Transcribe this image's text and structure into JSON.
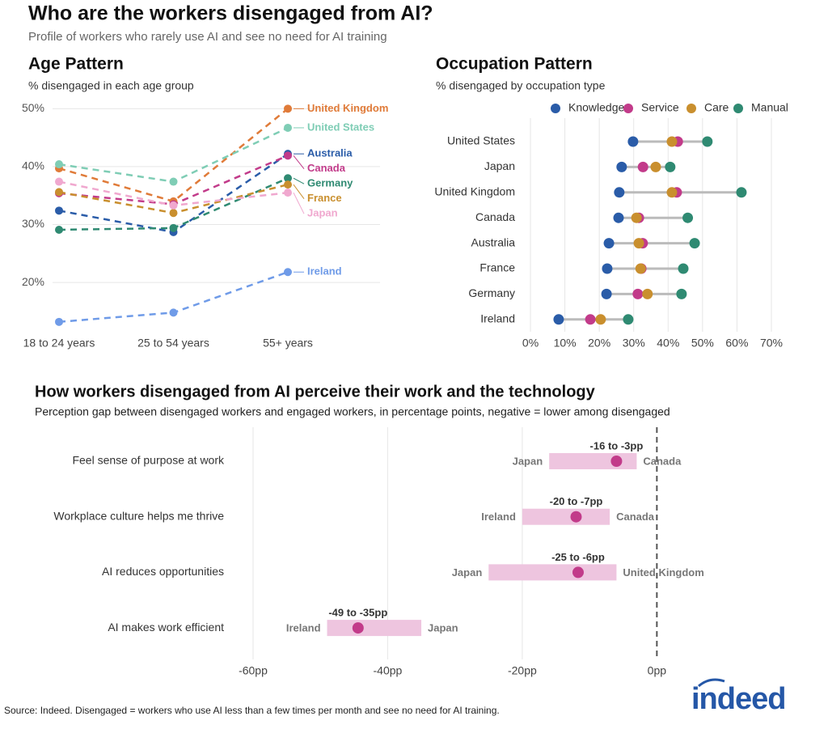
{
  "title": "Who are the workers disengaged from AI?",
  "subtitle": "Profile of workers who rarely use AI and see no need for AI training",
  "source": "Source: Indeed. Disengaged = workers who use AI less than a few times per month and see no need for AI training.",
  "logo": "indeed",
  "chart_data": [
    {
      "type": "line",
      "title": "Age Pattern",
      "subtitle": "% disengaged in each age group",
      "categories": [
        "18 to 24 years",
        "25 to 54 years",
        "55+ years"
      ],
      "ylim": [
        11.5,
        52
      ],
      "yticks": [
        {
          "value": 20,
          "label": "20%"
        },
        {
          "value": 30,
          "label": "30%"
        },
        {
          "value": 40,
          "label": "40%"
        },
        {
          "value": 50,
          "label": "50%"
        }
      ],
      "grid": true,
      "series": [
        {
          "name": "United Kingdom",
          "color": "#e07b39",
          "values": [
            39.7,
            34.0,
            50.0
          ]
        },
        {
          "name": "United States",
          "color": "#7fcdb5",
          "values": [
            40.4,
            37.4,
            46.7
          ]
        },
        {
          "name": "Australia",
          "color": "#2a5ca8",
          "values": [
            32.4,
            28.7,
            42.2
          ]
        },
        {
          "name": "Canada",
          "color": "#c23b8a",
          "values": [
            35.4,
            33.5,
            41.9
          ]
        },
        {
          "name": "Germany",
          "color": "#2f8a72",
          "values": [
            29.1,
            29.4,
            38.0
          ]
        },
        {
          "name": "France",
          "color": "#c98f2e",
          "values": [
            35.6,
            32.0,
            36.9
          ]
        },
        {
          "name": "Japan",
          "color": "#f0a8cf",
          "values": [
            37.4,
            33.3,
            35.5
          ]
        },
        {
          "name": "Ireland",
          "color": "#6f9be8",
          "values": [
            13.2,
            14.8,
            21.8
          ]
        }
      ]
    },
    {
      "type": "dot",
      "title": "Occupation Pattern",
      "subtitle": "% disengaged by occupation type",
      "categories": [
        "United States",
        "Japan",
        "United Kingdom",
        "Canada",
        "Australia",
        "France",
        "Germany",
        "Ireland"
      ],
      "xlim": [
        -4,
        74
      ],
      "xticks": [
        {
          "value": 0,
          "label": "0%"
        },
        {
          "value": 10,
          "label": "10%"
        },
        {
          "value": 20,
          "label": "20%"
        },
        {
          "value": 30,
          "label": "30%"
        },
        {
          "value": 40,
          "label": "40%"
        },
        {
          "value": 50,
          "label": "50%"
        },
        {
          "value": 60,
          "label": "60%"
        },
        {
          "value": 70,
          "label": "70%"
        }
      ],
      "grid": true,
      "legend": "top",
      "series": [
        {
          "name": "Knowledge",
          "color": "#2a5ca8",
          "values": [
            29.8,
            26.5,
            25.8,
            25.6,
            22.8,
            22.3,
            22.1,
            8.2
          ]
        },
        {
          "name": "Service",
          "color": "#c23b8a",
          "values": [
            42.8,
            32.7,
            42.5,
            31.5,
            32.6,
            32.2,
            31.2,
            17.4
          ]
        },
        {
          "name": "Care",
          "color": "#c98f2e",
          "values": [
            41.1,
            36.4,
            41.1,
            30.8,
            31.5,
            32.0,
            34.0,
            20.4
          ]
        },
        {
          "name": "Manual",
          "color": "#2f8a72",
          "values": [
            51.4,
            40.6,
            61.3,
            45.7,
            47.7,
            44.4,
            43.9,
            28.4
          ]
        }
      ]
    },
    {
      "type": "range",
      "title": "How workers disengaged from AI perceive their work and the technology",
      "subtitle": "Perception gap between disengaged workers and engaged workers, in percentage points, negative = lower among disengaged",
      "categories": [
        "Feel sense of purpose at work",
        "Workplace culture helps me thrive",
        "AI reduces opportunities",
        "AI makes work efficient"
      ],
      "low": [
        -16,
        -20,
        -25,
        -49
      ],
      "high": [
        -3,
        -7,
        -6,
        -35
      ],
      "mean": [
        -6,
        -12,
        -11.7,
        -44.4
      ],
      "low_names": [
        "Japan",
        "Ireland",
        "Japan",
        "Ireland"
      ],
      "high_names": [
        "Canada",
        "Canada",
        "United Kingdom",
        "Japan"
      ],
      "range_labels": [
        "-16 to -3pp",
        "-20 to -7pp",
        "-25 to -6pp",
        "-49 to -35pp"
      ],
      "bar_color": "#eec5df",
      "dot_color": "#c23b8a",
      "xlim": [
        -63,
        2
      ],
      "xticks": [
        {
          "value": -60,
          "label": "-60pp"
        },
        {
          "value": -40,
          "label": "-40pp"
        },
        {
          "value": -20,
          "label": "-20pp"
        },
        {
          "value": 0,
          "label": "0pp"
        }
      ],
      "grid": true
    }
  ]
}
